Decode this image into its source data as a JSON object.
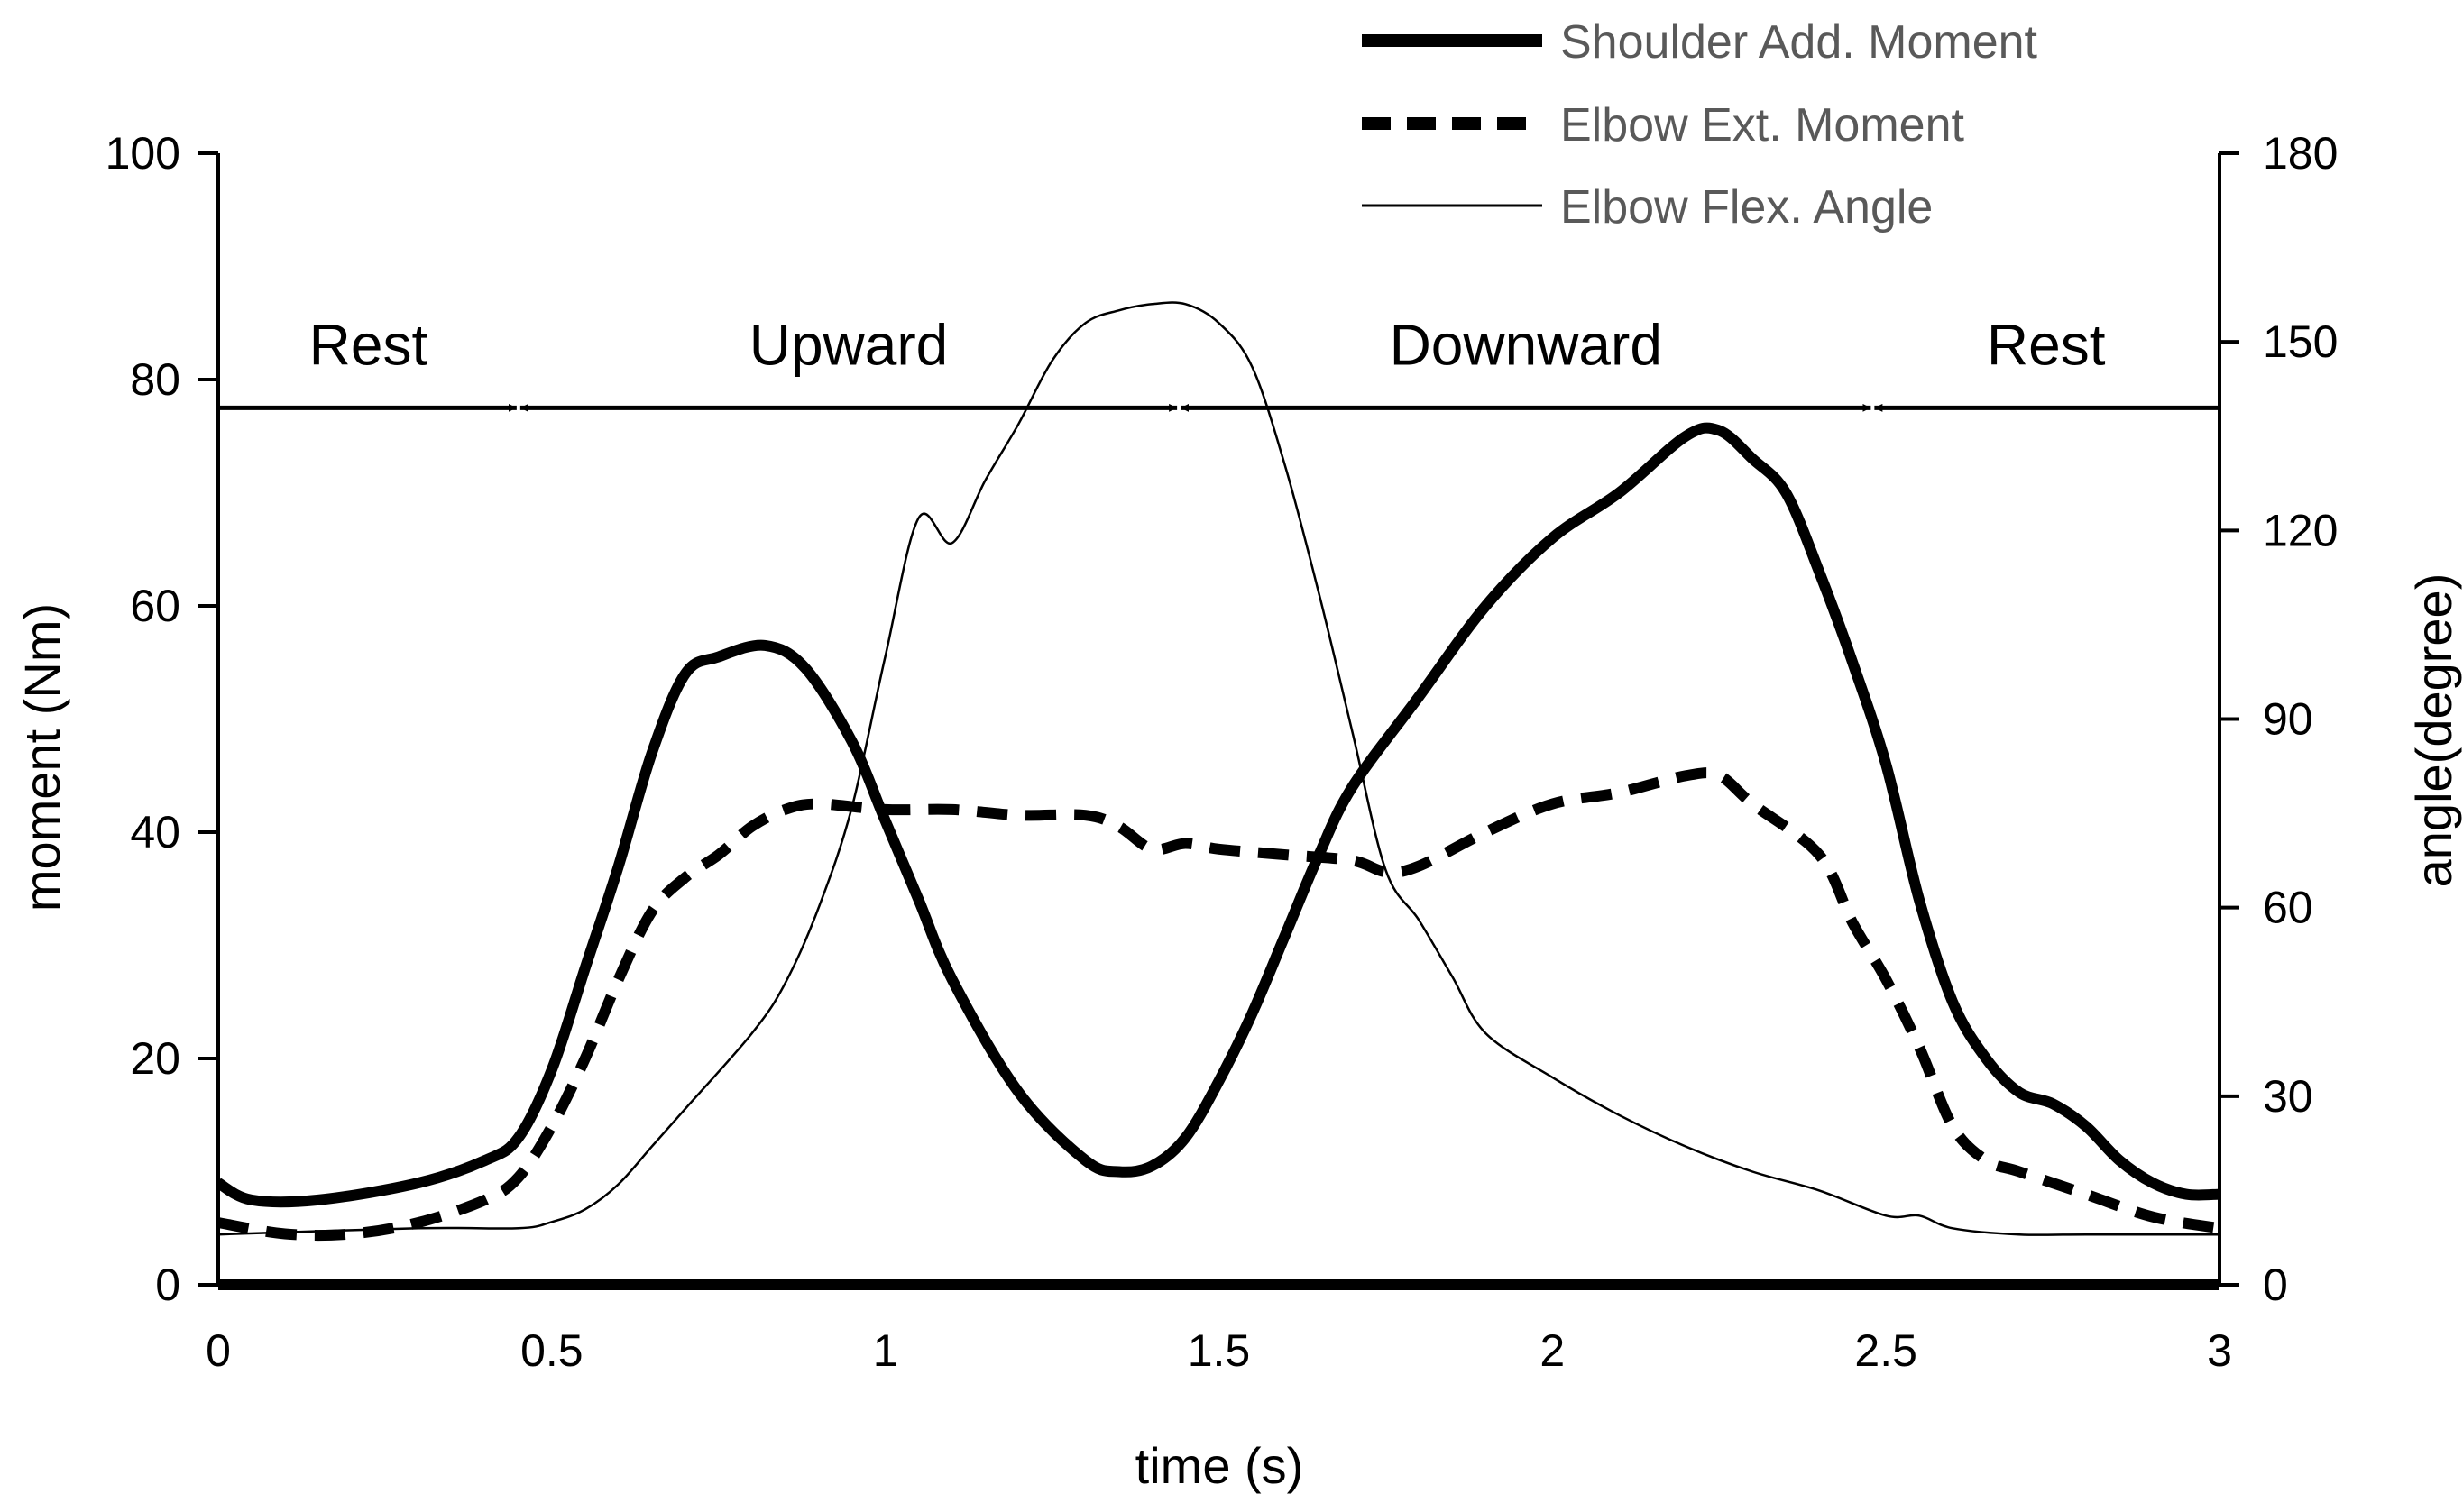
{
  "chart_data": {
    "type": "line",
    "title": "",
    "xlabel": "time (s)",
    "ylabel": "moment (Nm)",
    "y2label": "angle(degree)",
    "xlim": [
      0,
      3
    ],
    "ylim": [
      0,
      100
    ],
    "y2lim": [
      0,
      180
    ],
    "xticks": [
      0,
      0.5,
      1,
      1.5,
      2,
      2.5,
      3
    ],
    "xtick_labels": [
      "0",
      "0.5",
      "1",
      "1.5",
      "2",
      "2.5",
      "3"
    ],
    "yticks": [
      0,
      20,
      40,
      60,
      80,
      100
    ],
    "ytick_labels": [
      "0",
      "20",
      "40",
      "60",
      "80",
      "100"
    ],
    "y2ticks": [
      0,
      30,
      60,
      90,
      120,
      150,
      180
    ],
    "y2tick_labels": [
      "0",
      "30",
      "60",
      "90",
      "120",
      "150",
      "180"
    ],
    "grid": false,
    "legend_position": "top-right",
    "series": [
      {
        "name": "Shoulder Add. Moment",
        "axis": "left",
        "style": "thick-solid",
        "color": "#000000",
        "points": [
          [
            0,
            9
          ],
          [
            0.05,
            7.5
          ],
          [
            0.15,
            7.5
          ],
          [
            0.3,
            9
          ],
          [
            0.4,
            11
          ],
          [
            0.45,
            13
          ],
          [
            0.5,
            19
          ],
          [
            0.55,
            28
          ],
          [
            0.6,
            37
          ],
          [
            0.65,
            47
          ],
          [
            0.7,
            54
          ],
          [
            0.75,
            55.5
          ],
          [
            0.82,
            56.5
          ],
          [
            0.88,
            54.5
          ],
          [
            0.95,
            48
          ],
          [
            1.0,
            41
          ],
          [
            1.05,
            34
          ],
          [
            1.1,
            27
          ],
          [
            1.2,
            17
          ],
          [
            1.3,
            11
          ],
          [
            1.35,
            10
          ],
          [
            1.4,
            10.5
          ],
          [
            1.45,
            13
          ],
          [
            1.5,
            18
          ],
          [
            1.55,
            24
          ],
          [
            1.6,
            31
          ],
          [
            1.65,
            38
          ],
          [
            1.7,
            44
          ],
          [
            1.8,
            52
          ],
          [
            1.9,
            60
          ],
          [
            2.0,
            66
          ],
          [
            2.1,
            70
          ],
          [
            2.2,
            75
          ],
          [
            2.25,
            75.5
          ],
          [
            2.3,
            73
          ],
          [
            2.35,
            70
          ],
          [
            2.4,
            63
          ],
          [
            2.45,
            55
          ],
          [
            2.5,
            46
          ],
          [
            2.55,
            34
          ],
          [
            2.6,
            25
          ],
          [
            2.65,
            20
          ],
          [
            2.7,
            17
          ],
          [
            2.75,
            16
          ],
          [
            2.8,
            14
          ],
          [
            2.85,
            11
          ],
          [
            2.9,
            9
          ],
          [
            2.95,
            8
          ],
          [
            3.0,
            8
          ]
        ]
      },
      {
        "name": "Elbow Ext. Moment",
        "axis": "left",
        "style": "thick-dashed",
        "color": "#000000",
        "points": [
          [
            0,
            5.5
          ],
          [
            0.1,
            4.5
          ],
          [
            0.2,
            4.5
          ],
          [
            0.3,
            5.5
          ],
          [
            0.4,
            7.5
          ],
          [
            0.45,
            9.5
          ],
          [
            0.5,
            14
          ],
          [
            0.55,
            20
          ],
          [
            0.6,
            27
          ],
          [
            0.65,
            33
          ],
          [
            0.7,
            36
          ],
          [
            0.75,
            38
          ],
          [
            0.8,
            40.5
          ],
          [
            0.85,
            42
          ],
          [
            0.9,
            42.5
          ],
          [
            1.0,
            42
          ],
          [
            1.1,
            42
          ],
          [
            1.2,
            41.5
          ],
          [
            1.3,
            41.5
          ],
          [
            1.35,
            40.5
          ],
          [
            1.4,
            38.5
          ],
          [
            1.45,
            39
          ],
          [
            1.5,
            38.5
          ],
          [
            1.6,
            38
          ],
          [
            1.7,
            37.5
          ],
          [
            1.75,
            36.5
          ],
          [
            1.8,
            37
          ],
          [
            1.9,
            40
          ],
          [
            2.0,
            42.5
          ],
          [
            2.1,
            43.5
          ],
          [
            2.2,
            45
          ],
          [
            2.25,
            45
          ],
          [
            2.3,
            42.5
          ],
          [
            2.4,
            38
          ],
          [
            2.45,
            32
          ],
          [
            2.5,
            27
          ],
          [
            2.55,
            21
          ],
          [
            2.6,
            14
          ],
          [
            2.65,
            11
          ],
          [
            2.7,
            10
          ],
          [
            2.8,
            8
          ],
          [
            2.9,
            6
          ],
          [
            3.0,
            5
          ]
        ]
      },
      {
        "name": "Elbow Flex. Angle",
        "axis": "right",
        "style": "thin-solid",
        "color": "#000000",
        "points": [
          [
            0,
            8
          ],
          [
            0.3,
            9
          ],
          [
            0.45,
            9
          ],
          [
            0.5,
            10
          ],
          [
            0.55,
            12
          ],
          [
            0.6,
            16
          ],
          [
            0.65,
            22
          ],
          [
            0.7,
            28
          ],
          [
            0.8,
            40
          ],
          [
            0.85,
            48
          ],
          [
            0.9,
            60
          ],
          [
            0.95,
            76
          ],
          [
            1.0,
            100
          ],
          [
            1.05,
            122
          ],
          [
            1.1,
            118
          ],
          [
            1.15,
            128
          ],
          [
            1.2,
            137
          ],
          [
            1.25,
            147
          ],
          [
            1.3,
            153
          ],
          [
            1.35,
            155
          ],
          [
            1.4,
            156
          ],
          [
            1.45,
            156
          ],
          [
            1.5,
            153
          ],
          [
            1.55,
            146
          ],
          [
            1.6,
            130
          ],
          [
            1.65,
            110
          ],
          [
            1.7,
            88
          ],
          [
            1.75,
            66
          ],
          [
            1.8,
            58
          ],
          [
            1.85,
            49
          ],
          [
            1.9,
            40
          ],
          [
            2.0,
            33
          ],
          [
            2.1,
            27
          ],
          [
            2.2,
            22
          ],
          [
            2.3,
            18
          ],
          [
            2.4,
            15
          ],
          [
            2.5,
            11
          ],
          [
            2.55,
            11
          ],
          [
            2.6,
            9
          ],
          [
            2.7,
            8
          ],
          [
            2.8,
            8
          ],
          [
            3.0,
            8
          ]
        ]
      }
    ],
    "phases": [
      {
        "label": "Rest",
        "start": 0,
        "end": 0.45
      },
      {
        "label": "Upward",
        "start": 0.45,
        "end": 1.44
      },
      {
        "label": "Downward",
        "start": 1.44,
        "end": 2.48
      },
      {
        "label": "Rest",
        "start": 2.48,
        "end": 3.0
      }
    ],
    "phase_line_y": 77.5
  }
}
